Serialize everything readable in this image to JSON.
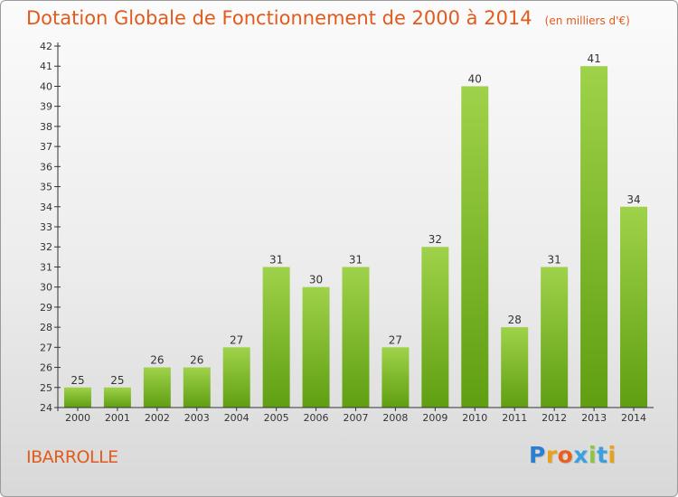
{
  "chart_data": {
    "type": "bar",
    "title": "Dotation Globale de Fonctionnement de 2000 à 2014",
    "subtitle": "(en milliers d'€)",
    "categories": [
      "2000",
      "2001",
      "2002",
      "2003",
      "2004",
      "2005",
      "2006",
      "2007",
      "2008",
      "2009",
      "2010",
      "2011",
      "2012",
      "2013",
      "2014"
    ],
    "values": [
      25,
      25,
      26,
      26,
      27,
      31,
      30,
      31,
      27,
      32,
      40,
      28,
      31,
      41,
      34
    ],
    "ylim": [
      24,
      42
    ],
    "yticks": [
      24,
      25,
      26,
      27,
      28,
      29,
      30,
      31,
      32,
      33,
      34,
      35,
      36,
      37,
      38,
      39,
      40,
      41,
      42
    ],
    "grid": false,
    "data_labels": true,
    "colors": {
      "bar_top": "#9fd24a",
      "bar_bottom": "#5f9e12",
      "title": "#e25a1c",
      "axis": "#333333"
    }
  },
  "place_name": "IBARROLLE",
  "logo": {
    "letters": [
      "P",
      "r",
      "o",
      "x",
      "i",
      "t",
      "i"
    ],
    "colors": [
      "#2b7fd0",
      "#e8a21a",
      "#e8601c",
      "#3aa0de",
      "#8cc63e",
      "#3aa0de",
      "#e8a21a"
    ]
  }
}
